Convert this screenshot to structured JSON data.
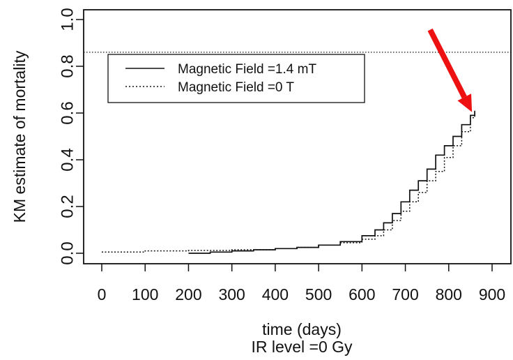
{
  "chart_data": {
    "type": "line",
    "title": "",
    "xlabel": "time (days)",
    "subtitle": "IR level =0 Gy",
    "ylabel": "KM estimate of mortality",
    "xlim": [
      0,
      900
    ],
    "ylim": [
      0.0,
      1.0
    ],
    "x_ticks": [
      "0",
      "100",
      "200",
      "300",
      "400",
      "500",
      "600",
      "700",
      "800",
      "900"
    ],
    "y_ticks": [
      "0.0",
      "0.2",
      "0.4",
      "0.6",
      "0.8",
      "1.0"
    ],
    "legend": {
      "placement": "top-left"
    },
    "reference_line": {
      "y": 0.86,
      "style": "dotted"
    },
    "annotation": {
      "type": "arrow",
      "color": "#ee1111",
      "points_to": {
        "x": 860,
        "y": 0.61
      }
    },
    "series": [
      {
        "name": "Magnetic Field =1.4 mT",
        "style": "solid",
        "color": "#111111",
        "points": [
          [
            200,
            0.0
          ],
          [
            250,
            0.005
          ],
          [
            300,
            0.01
          ],
          [
            350,
            0.015
          ],
          [
            400,
            0.02
          ],
          [
            450,
            0.025
          ],
          [
            500,
            0.035
          ],
          [
            550,
            0.05
          ],
          [
            600,
            0.075
          ],
          [
            630,
            0.1
          ],
          [
            650,
            0.13
          ],
          [
            670,
            0.17
          ],
          [
            690,
            0.22
          ],
          [
            710,
            0.27
          ],
          [
            730,
            0.31
          ],
          [
            750,
            0.36
          ],
          [
            770,
            0.42
          ],
          [
            790,
            0.46
          ],
          [
            810,
            0.5
          ],
          [
            830,
            0.55
          ],
          [
            850,
            0.59
          ],
          [
            860,
            0.61
          ]
        ]
      },
      {
        "name": "Magnetic Field =0 T",
        "style": "dotted",
        "color": "#111111",
        "points": [
          [
            0,
            0.005
          ],
          [
            100,
            0.01
          ],
          [
            200,
            0.012
          ],
          [
            300,
            0.015
          ],
          [
            400,
            0.02
          ],
          [
            450,
            0.025
          ],
          [
            500,
            0.035
          ],
          [
            550,
            0.045
          ],
          [
            600,
            0.06
          ],
          [
            630,
            0.075
          ],
          [
            650,
            0.1
          ],
          [
            670,
            0.14
          ],
          [
            690,
            0.18
          ],
          [
            710,
            0.22
          ],
          [
            730,
            0.26
          ],
          [
            750,
            0.31
          ],
          [
            770,
            0.35
          ],
          [
            790,
            0.41
          ],
          [
            810,
            0.46
          ],
          [
            830,
            0.52
          ],
          [
            850,
            0.58
          ],
          [
            860,
            0.61
          ]
        ]
      }
    ]
  }
}
